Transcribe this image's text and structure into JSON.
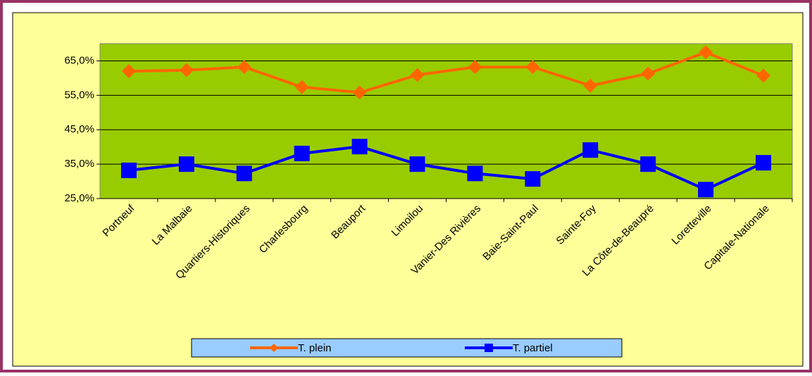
{
  "chart_data": {
    "type": "line",
    "categories": [
      "Portneuf",
      "La Malbaie",
      "Quartiers-Historiques",
      "Charlesbourg",
      "Beauport",
      "Limoilou",
      "Vanier-Des Rivières",
      "Baie-Saint-Paul",
      "Sainte-Foy",
      "La Côte-de-Beaupré",
      "Loretteville",
      "Capitale-Nationale"
    ],
    "series": [
      {
        "name": "T. plein",
        "color": "#ff6600",
        "marker": "diamond",
        "values": [
          62.0,
          62.3,
          63.2,
          57.4,
          55.8,
          60.9,
          63.2,
          63.2,
          57.8,
          61.3,
          67.5,
          60.7
        ]
      },
      {
        "name": "T. partiel",
        "color": "#0000ff",
        "marker": "square",
        "values": [
          33.2,
          35.0,
          32.3,
          38.1,
          40.1,
          35.0,
          32.3,
          30.7,
          39.1,
          35.0,
          27.6,
          35.4
        ]
      }
    ],
    "ylim": [
      25,
      70
    ],
    "yticks": [
      {
        "value": 25,
        "label": "25,0%"
      },
      {
        "value": 35,
        "label": "35,0%"
      },
      {
        "value": 45,
        "label": "45,0%"
      },
      {
        "value": 55,
        "label": "55,0%"
      },
      {
        "value": 65,
        "label": "65,0%"
      }
    ],
    "grid": true,
    "legend": "bottom",
    "plot_color": "#99cc00",
    "background": "#ffff99"
  }
}
